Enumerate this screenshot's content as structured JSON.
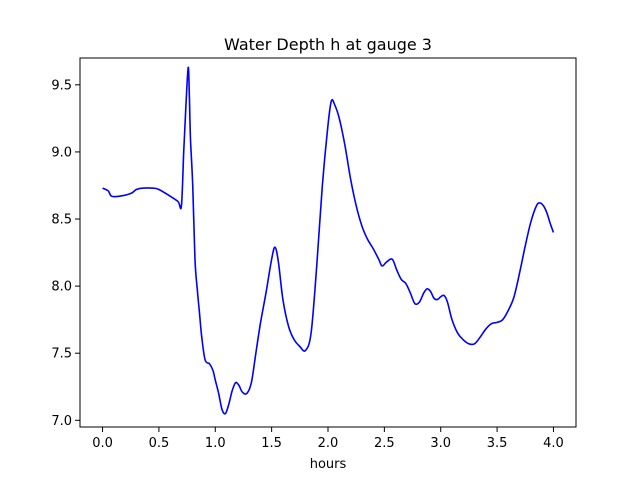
{
  "chart_data": {
    "type": "line",
    "title": "Water Depth h at gauge 3",
    "xlabel": "hours",
    "ylabel": "",
    "xlim": [
      -0.2,
      4.2
    ],
    "ylim": [
      6.95,
      9.7
    ],
    "grid": false,
    "legend": "none",
    "x_ticks": [
      0.0,
      0.5,
      1.0,
      1.5,
      2.0,
      2.5,
      3.0,
      3.5,
      4.0
    ],
    "x_tick_labels": [
      "0.0",
      "0.5",
      "1.0",
      "1.5",
      "2.0",
      "2.5",
      "3.0",
      "3.5",
      "4.0"
    ],
    "y_ticks": [
      7.0,
      7.5,
      8.0,
      8.5,
      9.0,
      9.5
    ],
    "y_tick_labels": [
      "7.0",
      "7.5",
      "8.0",
      "8.5",
      "9.0",
      "9.5"
    ],
    "series": [
      {
        "color": "#0000ff",
        "x": [
          0.0,
          0.05,
          0.08,
          0.15,
          0.25,
          0.3,
          0.35,
          0.45,
          0.5,
          0.6,
          0.67,
          0.7,
          0.72,
          0.74,
          0.76,
          0.77,
          0.78,
          0.8,
          0.82,
          0.84,
          0.86,
          0.88,
          0.91,
          0.95,
          0.98,
          1.0,
          1.03,
          1.06,
          1.09,
          1.12,
          1.15,
          1.18,
          1.21,
          1.24,
          1.28,
          1.32,
          1.36,
          1.4,
          1.45,
          1.5,
          1.53,
          1.56,
          1.6,
          1.65,
          1.7,
          1.75,
          1.8,
          1.85,
          1.9,
          1.95,
          2.0,
          2.03,
          2.06,
          2.1,
          2.15,
          2.2,
          2.25,
          2.3,
          2.35,
          2.4,
          2.45,
          2.48,
          2.52,
          2.57,
          2.61,
          2.65,
          2.69,
          2.73,
          2.77,
          2.81,
          2.85,
          2.88,
          2.91,
          2.94,
          2.97,
          3.0,
          3.03,
          3.06,
          3.1,
          3.15,
          3.2,
          3.25,
          3.3,
          3.35,
          3.4,
          3.45,
          3.5,
          3.55,
          3.6,
          3.65,
          3.7,
          3.75,
          3.8,
          3.85,
          3.88,
          3.91,
          3.94,
          3.97,
          4.0
        ],
        "values": [
          8.73,
          8.71,
          8.67,
          8.67,
          8.69,
          8.72,
          8.73,
          8.73,
          8.72,
          8.67,
          8.63,
          8.6,
          9.0,
          9.35,
          9.63,
          9.42,
          9.1,
          8.75,
          8.2,
          7.98,
          7.8,
          7.62,
          7.45,
          7.42,
          7.37,
          7.3,
          7.2,
          7.08,
          7.05,
          7.12,
          7.22,
          7.28,
          7.26,
          7.21,
          7.2,
          7.28,
          7.5,
          7.72,
          7.95,
          8.2,
          8.29,
          8.18,
          7.9,
          7.7,
          7.6,
          7.55,
          7.52,
          7.65,
          8.15,
          8.75,
          9.2,
          9.38,
          9.35,
          9.25,
          9.05,
          8.8,
          8.6,
          8.45,
          8.35,
          8.28,
          8.2,
          8.15,
          8.18,
          8.2,
          8.12,
          8.05,
          8.02,
          7.95,
          7.87,
          7.88,
          7.95,
          7.98,
          7.96,
          7.91,
          7.9,
          7.92,
          7.93,
          7.88,
          7.75,
          7.65,
          7.6,
          7.57,
          7.57,
          7.62,
          7.68,
          7.72,
          7.73,
          7.75,
          7.82,
          7.92,
          8.1,
          8.3,
          8.48,
          8.6,
          8.62,
          8.6,
          8.55,
          8.47,
          8.4
        ]
      }
    ]
  }
}
